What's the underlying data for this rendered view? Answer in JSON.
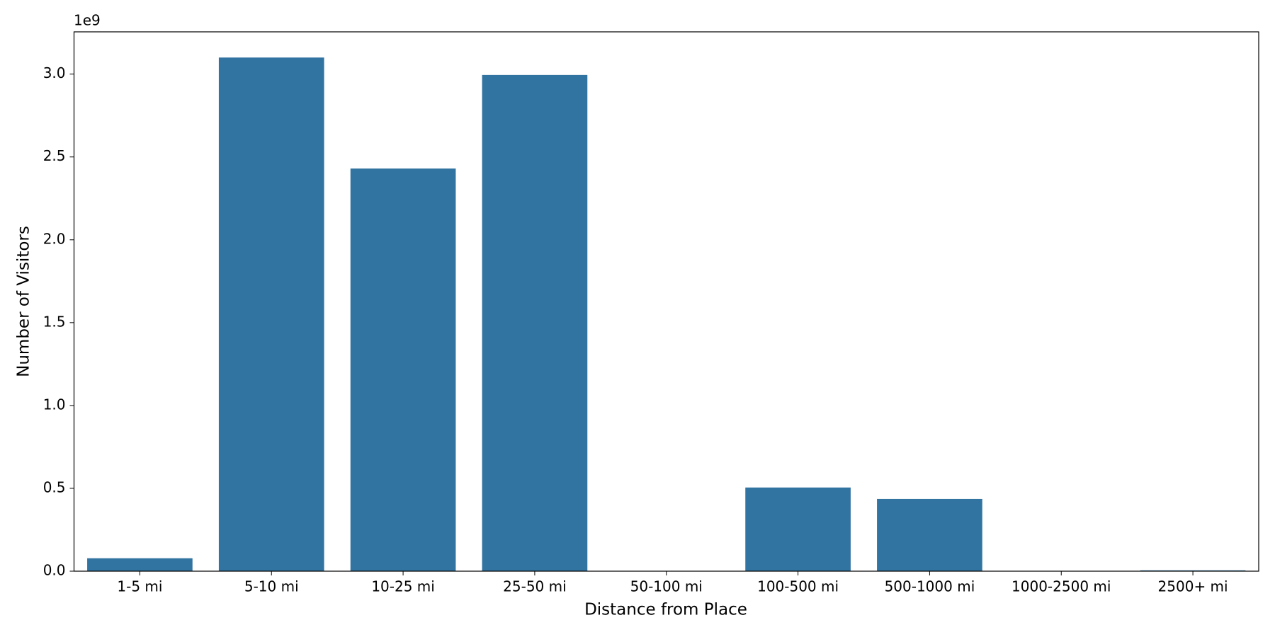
{
  "chart_data": {
    "type": "bar",
    "x_label": "Distance from Place",
    "y_label": "Number of Visitors",
    "y_offset_label": "1e9",
    "categories": [
      "1-5 mi",
      "5-10 mi",
      "10-25 mi",
      "25-50 mi",
      "50-100 mi",
      "100-500 mi",
      "500-1000 mi",
      "1000-2500 mi",
      "2500+ mi"
    ],
    "values": [
      0.078,
      3.1,
      2.43,
      2.995,
      0,
      0.505,
      0.436,
      0,
      0.005
    ],
    "color": "#3274a1",
    "ylim": [
      0,
      3.255
    ],
    "yticks": [
      {
        "value": 0,
        "label": "0.0"
      },
      {
        "value": 0.5,
        "label": "0.5"
      },
      {
        "value": 1,
        "label": "1.0"
      },
      {
        "value": 1.5,
        "label": "1.5"
      },
      {
        "value": 2,
        "label": "2.0"
      },
      {
        "value": 2.5,
        "label": "2.5"
      },
      {
        "value": 3,
        "label": "3.0"
      }
    ],
    "grid": false
  }
}
